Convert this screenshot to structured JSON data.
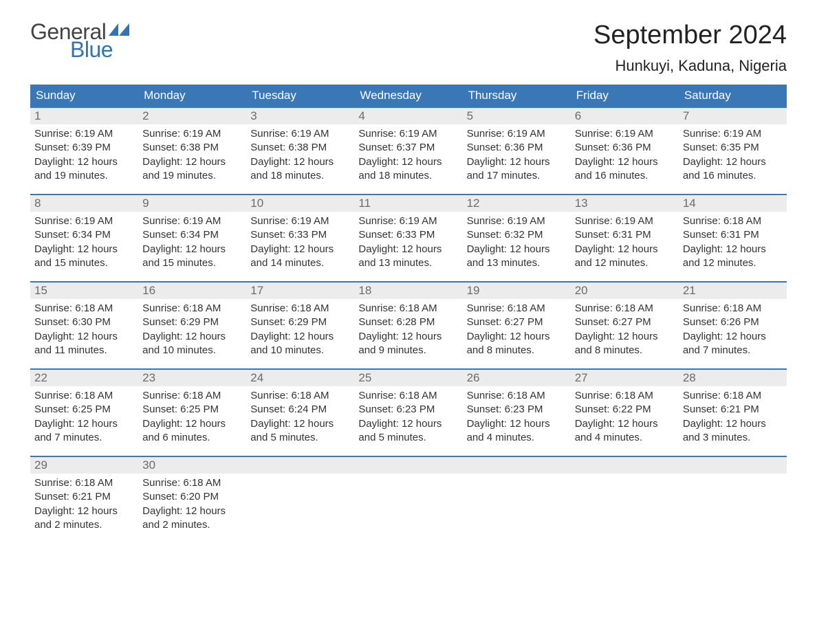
{
  "brand": {
    "word1": "General",
    "word2": "Blue",
    "flag_color": "#2f74b5",
    "word1_color": "#444444",
    "word2_color": "#2f74b5"
  },
  "header": {
    "month_title": "September 2024",
    "location": "Hunkuyi, Kaduna, Nigeria"
  },
  "colors": {
    "header_bg": "#3a77b7",
    "header_text": "#ffffff",
    "daynum_bg": "#ececec",
    "daynum_text": "#6b6b6b",
    "body_text": "#333333",
    "week_border": "#3a77b7",
    "page_bg": "#ffffff"
  },
  "typography": {
    "month_title_fontsize": 38,
    "location_fontsize": 22,
    "weekday_fontsize": 17,
    "daynum_fontsize": 17,
    "body_fontsize": 15,
    "logo_fontsize": 32,
    "font_family": "Arial"
  },
  "weekdays": [
    "Sunday",
    "Monday",
    "Tuesday",
    "Wednesday",
    "Thursday",
    "Friday",
    "Saturday"
  ],
  "weeks": [
    [
      {
        "n": "1",
        "sunrise": "Sunrise: 6:19 AM",
        "sunset": "Sunset: 6:39 PM",
        "dl1": "Daylight: 12 hours",
        "dl2": "and 19 minutes."
      },
      {
        "n": "2",
        "sunrise": "Sunrise: 6:19 AM",
        "sunset": "Sunset: 6:38 PM",
        "dl1": "Daylight: 12 hours",
        "dl2": "and 19 minutes."
      },
      {
        "n": "3",
        "sunrise": "Sunrise: 6:19 AM",
        "sunset": "Sunset: 6:38 PM",
        "dl1": "Daylight: 12 hours",
        "dl2": "and 18 minutes."
      },
      {
        "n": "4",
        "sunrise": "Sunrise: 6:19 AM",
        "sunset": "Sunset: 6:37 PM",
        "dl1": "Daylight: 12 hours",
        "dl2": "and 18 minutes."
      },
      {
        "n": "5",
        "sunrise": "Sunrise: 6:19 AM",
        "sunset": "Sunset: 6:36 PM",
        "dl1": "Daylight: 12 hours",
        "dl2": "and 17 minutes."
      },
      {
        "n": "6",
        "sunrise": "Sunrise: 6:19 AM",
        "sunset": "Sunset: 6:36 PM",
        "dl1": "Daylight: 12 hours",
        "dl2": "and 16 minutes."
      },
      {
        "n": "7",
        "sunrise": "Sunrise: 6:19 AM",
        "sunset": "Sunset: 6:35 PM",
        "dl1": "Daylight: 12 hours",
        "dl2": "and 16 minutes."
      }
    ],
    [
      {
        "n": "8",
        "sunrise": "Sunrise: 6:19 AM",
        "sunset": "Sunset: 6:34 PM",
        "dl1": "Daylight: 12 hours",
        "dl2": "and 15 minutes."
      },
      {
        "n": "9",
        "sunrise": "Sunrise: 6:19 AM",
        "sunset": "Sunset: 6:34 PM",
        "dl1": "Daylight: 12 hours",
        "dl2": "and 15 minutes."
      },
      {
        "n": "10",
        "sunrise": "Sunrise: 6:19 AM",
        "sunset": "Sunset: 6:33 PM",
        "dl1": "Daylight: 12 hours",
        "dl2": "and 14 minutes."
      },
      {
        "n": "11",
        "sunrise": "Sunrise: 6:19 AM",
        "sunset": "Sunset: 6:33 PM",
        "dl1": "Daylight: 12 hours",
        "dl2": "and 13 minutes."
      },
      {
        "n": "12",
        "sunrise": "Sunrise: 6:19 AM",
        "sunset": "Sunset: 6:32 PM",
        "dl1": "Daylight: 12 hours",
        "dl2": "and 13 minutes."
      },
      {
        "n": "13",
        "sunrise": "Sunrise: 6:19 AM",
        "sunset": "Sunset: 6:31 PM",
        "dl1": "Daylight: 12 hours",
        "dl2": "and 12 minutes."
      },
      {
        "n": "14",
        "sunrise": "Sunrise: 6:18 AM",
        "sunset": "Sunset: 6:31 PM",
        "dl1": "Daylight: 12 hours",
        "dl2": "and 12 minutes."
      }
    ],
    [
      {
        "n": "15",
        "sunrise": "Sunrise: 6:18 AM",
        "sunset": "Sunset: 6:30 PM",
        "dl1": "Daylight: 12 hours",
        "dl2": "and 11 minutes."
      },
      {
        "n": "16",
        "sunrise": "Sunrise: 6:18 AM",
        "sunset": "Sunset: 6:29 PM",
        "dl1": "Daylight: 12 hours",
        "dl2": "and 10 minutes."
      },
      {
        "n": "17",
        "sunrise": "Sunrise: 6:18 AM",
        "sunset": "Sunset: 6:29 PM",
        "dl1": "Daylight: 12 hours",
        "dl2": "and 10 minutes."
      },
      {
        "n": "18",
        "sunrise": "Sunrise: 6:18 AM",
        "sunset": "Sunset: 6:28 PM",
        "dl1": "Daylight: 12 hours",
        "dl2": "and 9 minutes."
      },
      {
        "n": "19",
        "sunrise": "Sunrise: 6:18 AM",
        "sunset": "Sunset: 6:27 PM",
        "dl1": "Daylight: 12 hours",
        "dl2": "and 8 minutes."
      },
      {
        "n": "20",
        "sunrise": "Sunrise: 6:18 AM",
        "sunset": "Sunset: 6:27 PM",
        "dl1": "Daylight: 12 hours",
        "dl2": "and 8 minutes."
      },
      {
        "n": "21",
        "sunrise": "Sunrise: 6:18 AM",
        "sunset": "Sunset: 6:26 PM",
        "dl1": "Daylight: 12 hours",
        "dl2": "and 7 minutes."
      }
    ],
    [
      {
        "n": "22",
        "sunrise": "Sunrise: 6:18 AM",
        "sunset": "Sunset: 6:25 PM",
        "dl1": "Daylight: 12 hours",
        "dl2": "and 7 minutes."
      },
      {
        "n": "23",
        "sunrise": "Sunrise: 6:18 AM",
        "sunset": "Sunset: 6:25 PM",
        "dl1": "Daylight: 12 hours",
        "dl2": "and 6 minutes."
      },
      {
        "n": "24",
        "sunrise": "Sunrise: 6:18 AM",
        "sunset": "Sunset: 6:24 PM",
        "dl1": "Daylight: 12 hours",
        "dl2": "and 5 minutes."
      },
      {
        "n": "25",
        "sunrise": "Sunrise: 6:18 AM",
        "sunset": "Sunset: 6:23 PM",
        "dl1": "Daylight: 12 hours",
        "dl2": "and 5 minutes."
      },
      {
        "n": "26",
        "sunrise": "Sunrise: 6:18 AM",
        "sunset": "Sunset: 6:23 PM",
        "dl1": "Daylight: 12 hours",
        "dl2": "and 4 minutes."
      },
      {
        "n": "27",
        "sunrise": "Sunrise: 6:18 AM",
        "sunset": "Sunset: 6:22 PM",
        "dl1": "Daylight: 12 hours",
        "dl2": "and 4 minutes."
      },
      {
        "n": "28",
        "sunrise": "Sunrise: 6:18 AM",
        "sunset": "Sunset: 6:21 PM",
        "dl1": "Daylight: 12 hours",
        "dl2": "and 3 minutes."
      }
    ],
    [
      {
        "n": "29",
        "sunrise": "Sunrise: 6:18 AM",
        "sunset": "Sunset: 6:21 PM",
        "dl1": "Daylight: 12 hours",
        "dl2": "and 2 minutes."
      },
      {
        "n": "30",
        "sunrise": "Sunrise: 6:18 AM",
        "sunset": "Sunset: 6:20 PM",
        "dl1": "Daylight: 12 hours",
        "dl2": "and 2 minutes."
      },
      {
        "n": "",
        "sunrise": "",
        "sunset": "",
        "dl1": "",
        "dl2": ""
      },
      {
        "n": "",
        "sunrise": "",
        "sunset": "",
        "dl1": "",
        "dl2": ""
      },
      {
        "n": "",
        "sunrise": "",
        "sunset": "",
        "dl1": "",
        "dl2": ""
      },
      {
        "n": "",
        "sunrise": "",
        "sunset": "",
        "dl1": "",
        "dl2": ""
      },
      {
        "n": "",
        "sunrise": "",
        "sunset": "",
        "dl1": "",
        "dl2": ""
      }
    ]
  ]
}
